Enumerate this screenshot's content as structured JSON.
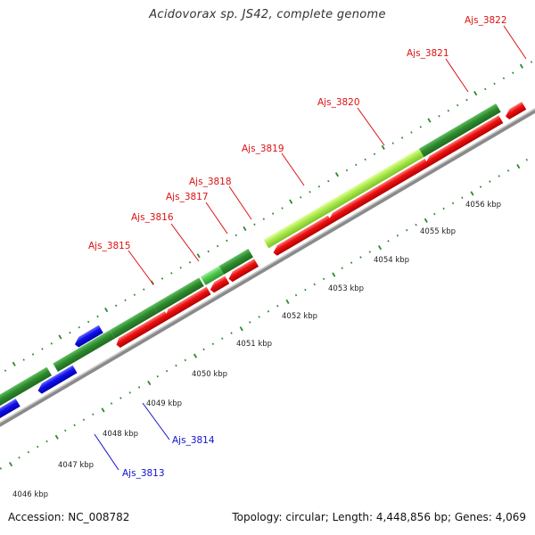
{
  "title": "Acidovorax sp. JS42, complete genome",
  "footer": {
    "accession": "Accession: NC_008782",
    "topology": "Topology: circular; Length: 4,448,856 bp; Genes: 4,069"
  },
  "colors": {
    "forward_gene": "#2e8b2e",
    "forward_gene_highlight": "#a8e84a",
    "forward_gene_light": "#4cc44c",
    "reverse_gene": "#ee1111",
    "rna_gene": "#1111ee",
    "label_red": "#dd1111",
    "label_blue": "#1111cc",
    "tick": "#2a8a2a",
    "backbone": "#8a8a8a"
  },
  "kbp_labels": [
    "4046 kbp",
    "4047 kbp",
    "4048 kbp",
    "4049 kbp",
    "4050 kbp",
    "4051 kbp",
    "4052 kbp",
    "4053 kbp",
    "4054 kbp",
    "4055 kbp",
    "4056 kbp"
  ],
  "gene_labels": [
    {
      "text": "Ajs_3815",
      "color": "red"
    },
    {
      "text": "Ajs_3816",
      "color": "red"
    },
    {
      "text": "Ajs_3817",
      "color": "red"
    },
    {
      "text": "Ajs_3818",
      "color": "red"
    },
    {
      "text": "Ajs_3819",
      "color": "red"
    },
    {
      "text": "Ajs_3820",
      "color": "red"
    },
    {
      "text": "Ajs_3821",
      "color": "red"
    },
    {
      "text": "Ajs_3822",
      "color": "red"
    },
    {
      "text": "Ajs_3814",
      "color": "blue"
    },
    {
      "text": "Ajs_3813",
      "color": "blue"
    }
  ]
}
